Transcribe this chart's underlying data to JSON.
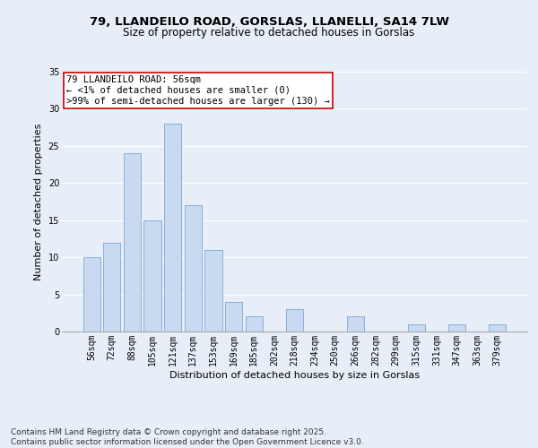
{
  "title1": "79, LLANDEILO ROAD, GORSLAS, LLANELLI, SA14 7LW",
  "title2": "Size of property relative to detached houses in Gorslas",
  "xlabel": "Distribution of detached houses by size in Gorslas",
  "ylabel": "Number of detached properties",
  "categories": [
    "56sqm",
    "72sqm",
    "88sqm",
    "105sqm",
    "121sqm",
    "137sqm",
    "153sqm",
    "169sqm",
    "185sqm",
    "202sqm",
    "218sqm",
    "234sqm",
    "250sqm",
    "266sqm",
    "282sqm",
    "299sqm",
    "315sqm",
    "331sqm",
    "347sqm",
    "363sqm",
    "379sqm"
  ],
  "values": [
    10,
    12,
    24,
    15,
    28,
    17,
    11,
    4,
    2,
    0,
    3,
    0,
    0,
    2,
    0,
    0,
    1,
    0,
    1,
    0,
    1
  ],
  "bar_color": "#c9d9f0",
  "bar_edge_color": "#7aa8d8",
  "annotation_text": "79 LLANDEILO ROAD: 56sqm\n← <1% of detached houses are smaller (0)\n>99% of semi-detached houses are larger (130) →",
  "annotation_box_color": "#ffffff",
  "annotation_box_edge": "#cc0000",
  "ylim": [
    0,
    35
  ],
  "yticks": [
    0,
    5,
    10,
    15,
    20,
    25,
    30,
    35
  ],
  "footer": "Contains HM Land Registry data © Crown copyright and database right 2025.\nContains public sector information licensed under the Open Government Licence v3.0.",
  "background_color": "#e8eef8",
  "plot_bg_color": "#e8eef8",
  "grid_color": "#ffffff",
  "title_fontsize": 9.5,
  "subtitle_fontsize": 8.5,
  "axis_label_fontsize": 8,
  "tick_fontsize": 7,
  "annotation_fontsize": 7.5,
  "footer_fontsize": 6.5
}
